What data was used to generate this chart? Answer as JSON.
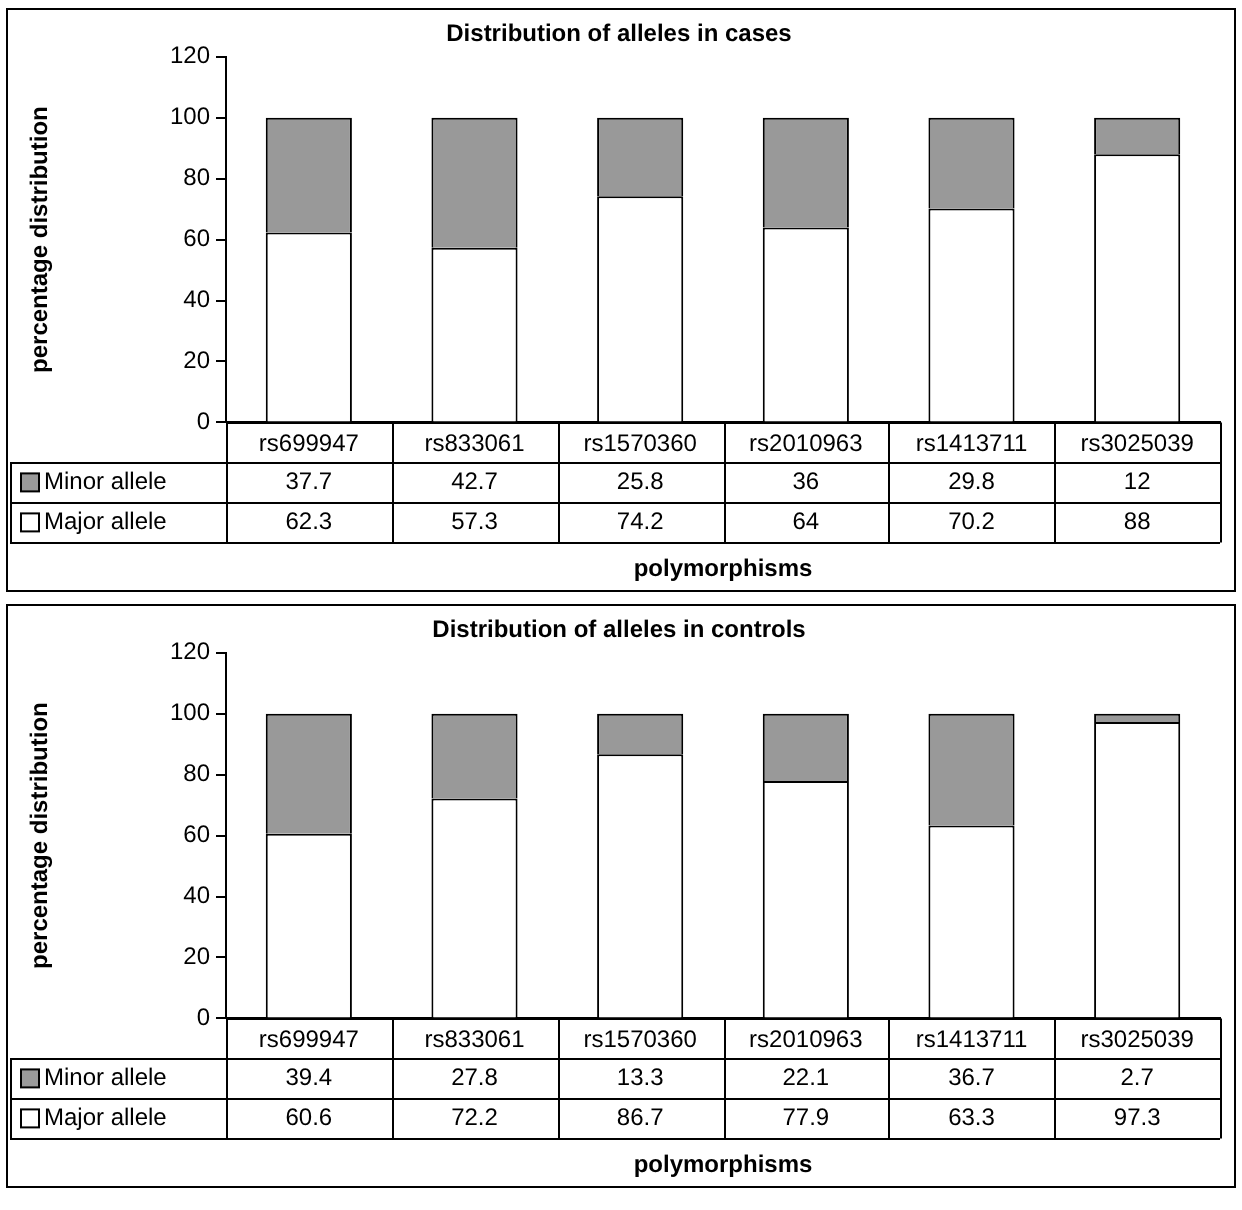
{
  "chart_data": [
    {
      "type": "bar",
      "title": "Distribution of alleles in cases",
      "xlabel": "polymorphisms",
      "ylabel": "percentage distribution",
      "categories": [
        "rs699947",
        "rs833061",
        "rs1570360",
        "rs2010963",
        "rs1413711",
        "rs3025039"
      ],
      "stacked": true,
      "ylim": [
        0,
        120
      ],
      "yticks": [
        0,
        20,
        40,
        60,
        80,
        100,
        120
      ],
      "grid": false,
      "legend": "bottom left",
      "data_labels": true,
      "series": [
        {
          "name": "Major allele",
          "color": "#ffffff",
          "values": [
            62.3,
            57.3,
            74.2,
            64,
            70.2,
            88
          ]
        },
        {
          "name": "Minor allele",
          "color": "#999999",
          "values": [
            37.7,
            42.7,
            25.8,
            36,
            29.8,
            12
          ]
        }
      ]
    },
    {
      "type": "bar",
      "title": "Distribution of alleles in controls",
      "xlabel": "polymorphisms",
      "ylabel": "percentage distribution",
      "categories": [
        "rs699947",
        "rs833061",
        "rs1570360",
        "rs2010963",
        "rs1413711",
        "rs3025039"
      ],
      "stacked": true,
      "ylim": [
        0,
        120
      ],
      "yticks": [
        0,
        20,
        40,
        60,
        80,
        100,
        120
      ],
      "grid": false,
      "legend": "bottom left",
      "data_labels": true,
      "series": [
        {
          "name": "Major allele",
          "color": "#ffffff",
          "values": [
            60.6,
            72.2,
            86.7,
            77.9,
            63.3,
            97.3
          ]
        },
        {
          "name": "Minor allele",
          "color": "#999999",
          "values": [
            39.4,
            27.8,
            13.3,
            22.1,
            36.7,
            2.7
          ]
        }
      ]
    }
  ]
}
